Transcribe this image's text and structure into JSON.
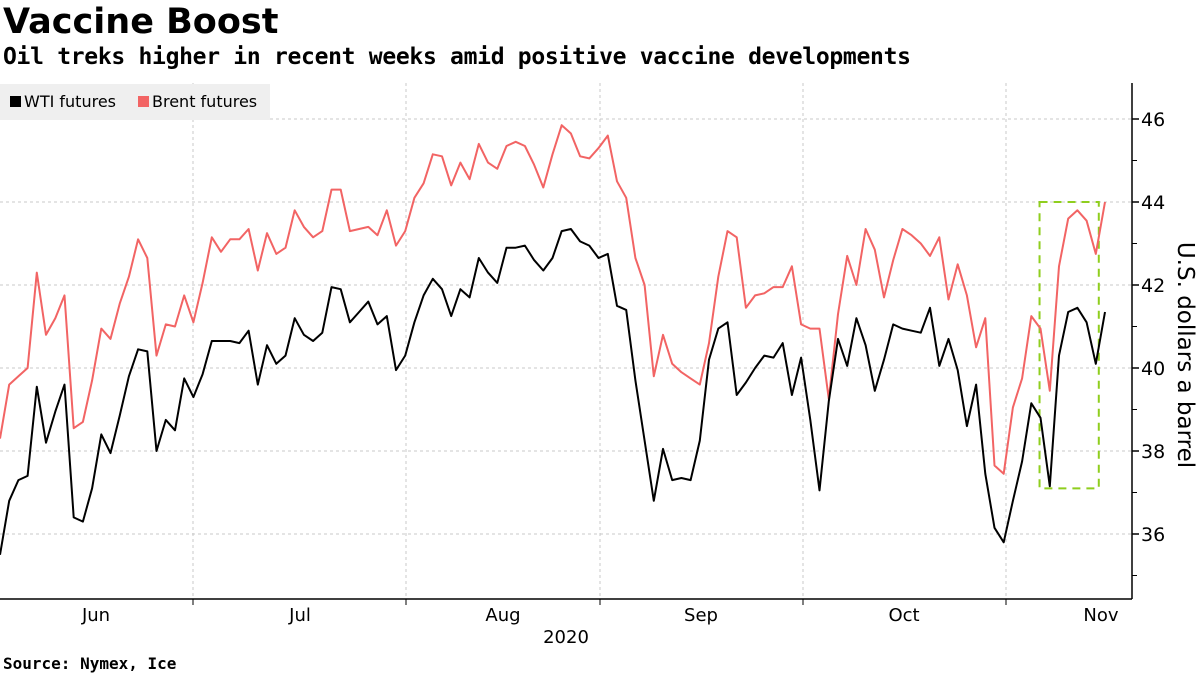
{
  "header": {
    "title": "Vaccine Boost",
    "subtitle": "Oil treks higher in recent weeks amid positive vaccine developments"
  },
  "footer": {
    "source": "Source: Nymex, Ice"
  },
  "colors": {
    "wti": "#000000",
    "brent": "#f26464",
    "highlight": "#8fce1e",
    "grid": "#c8c8c8",
    "legend_bg": "#efefef"
  },
  "chart_data": {
    "type": "line",
    "title": "Vaccine Boost",
    "subtitle": "Oil treks higher in recent weeks amid positive vaccine developments",
    "xlabel": "2020",
    "ylabel": "U.S. dollars a barrel",
    "ylim": [
      34.3,
      46.8
    ],
    "yticks": [
      36,
      38,
      40,
      42,
      44,
      46
    ],
    "ytick_labels": [
      "36",
      "38",
      "40",
      "42",
      "44",
      "46"
    ],
    "x_month_labels": [
      "Jun",
      "Jul",
      "Aug",
      "Sep",
      "Oct",
      "Nov"
    ],
    "x_year_label": "2020",
    "grid": true,
    "legend_position": "top-left",
    "highlight_box": {
      "x_start_index": 113,
      "x_end_index": 119,
      "y_range": [
        37.1,
        44.0
      ]
    },
    "series": [
      {
        "name": "WTI futures",
        "values": [
          35.5,
          36.8,
          37.3,
          37.4,
          39.55,
          38.2,
          38.95,
          39.6,
          36.4,
          36.3,
          37.1,
          38.4,
          37.95,
          38.85,
          39.8,
          40.45,
          40.4,
          38.0,
          38.75,
          38.5,
          39.75,
          39.3,
          39.85,
          40.65,
          40.65,
          40.65,
          40.6,
          40.9,
          39.6,
          40.55,
          40.1,
          40.3,
          41.2,
          40.8,
          40.65,
          40.85,
          41.95,
          41.9,
          41.1,
          41.35,
          41.6,
          41.05,
          41.25,
          39.95,
          40.3,
          41.1,
          41.75,
          42.15,
          41.9,
          41.25,
          41.9,
          41.7,
          42.65,
          42.3,
          42.05,
          42.9,
          42.9,
          42.95,
          42.6,
          42.35,
          42.65,
          43.3,
          43.35,
          43.05,
          42.95,
          42.65,
          42.75,
          41.5,
          41.4,
          39.7,
          38.25,
          36.8,
          38.05,
          37.3,
          37.35,
          37.3,
          38.25,
          40.2,
          40.95,
          41.1,
          39.35,
          39.65,
          40.0,
          40.3,
          40.25,
          40.6,
          39.35,
          40.25,
          38.75,
          37.05,
          39.2,
          40.7,
          40.05,
          41.2,
          40.55,
          39.45,
          40.2,
          41.05,
          40.95,
          40.9,
          40.85,
          41.45,
          40.05,
          40.7,
          39.95,
          38.6,
          39.6,
          37.45,
          36.15,
          35.8,
          36.8,
          37.75,
          39.15,
          38.8,
          37.15,
          40.3,
          41.35,
          41.45,
          41.1,
          40.1,
          41.35
        ]
      },
      {
        "name": "Brent futures",
        "values": [
          38.3,
          39.6,
          39.8,
          40.0,
          42.3,
          40.8,
          41.2,
          41.75,
          38.55,
          38.7,
          39.7,
          40.95,
          40.7,
          41.55,
          42.2,
          43.1,
          42.65,
          40.3,
          41.05,
          41.0,
          41.75,
          41.1,
          42.05,
          43.15,
          42.8,
          43.1,
          43.1,
          43.35,
          42.35,
          43.25,
          42.75,
          42.9,
          43.8,
          43.4,
          43.15,
          43.3,
          44.3,
          44.3,
          43.3,
          43.35,
          43.4,
          43.2,
          43.8,
          42.95,
          43.3,
          44.1,
          44.45,
          45.15,
          45.1,
          44.4,
          44.95,
          44.55,
          45.4,
          44.95,
          44.8,
          45.35,
          45.45,
          45.35,
          44.9,
          44.35,
          45.15,
          45.85,
          45.65,
          45.1,
          45.05,
          45.3,
          45.6,
          44.5,
          44.1,
          42.65,
          42.0,
          39.8,
          40.8,
          40.1,
          39.9,
          39.75,
          39.6,
          40.6,
          42.2,
          43.3,
          43.15,
          41.45,
          41.75,
          41.8,
          41.95,
          41.95,
          42.45,
          41.05,
          40.95,
          40.95,
          39.25,
          41.3,
          42.7,
          42.0,
          43.35,
          42.85,
          41.7,
          42.6,
          43.35,
          43.2,
          43.0,
          42.7,
          43.15,
          41.65,
          42.5,
          41.75,
          40.5,
          41.2,
          37.65,
          37.45,
          39.05,
          39.75,
          41.25,
          40.95,
          39.45,
          42.45,
          43.6,
          43.8,
          43.55,
          42.75,
          44.0
        ]
      }
    ]
  }
}
